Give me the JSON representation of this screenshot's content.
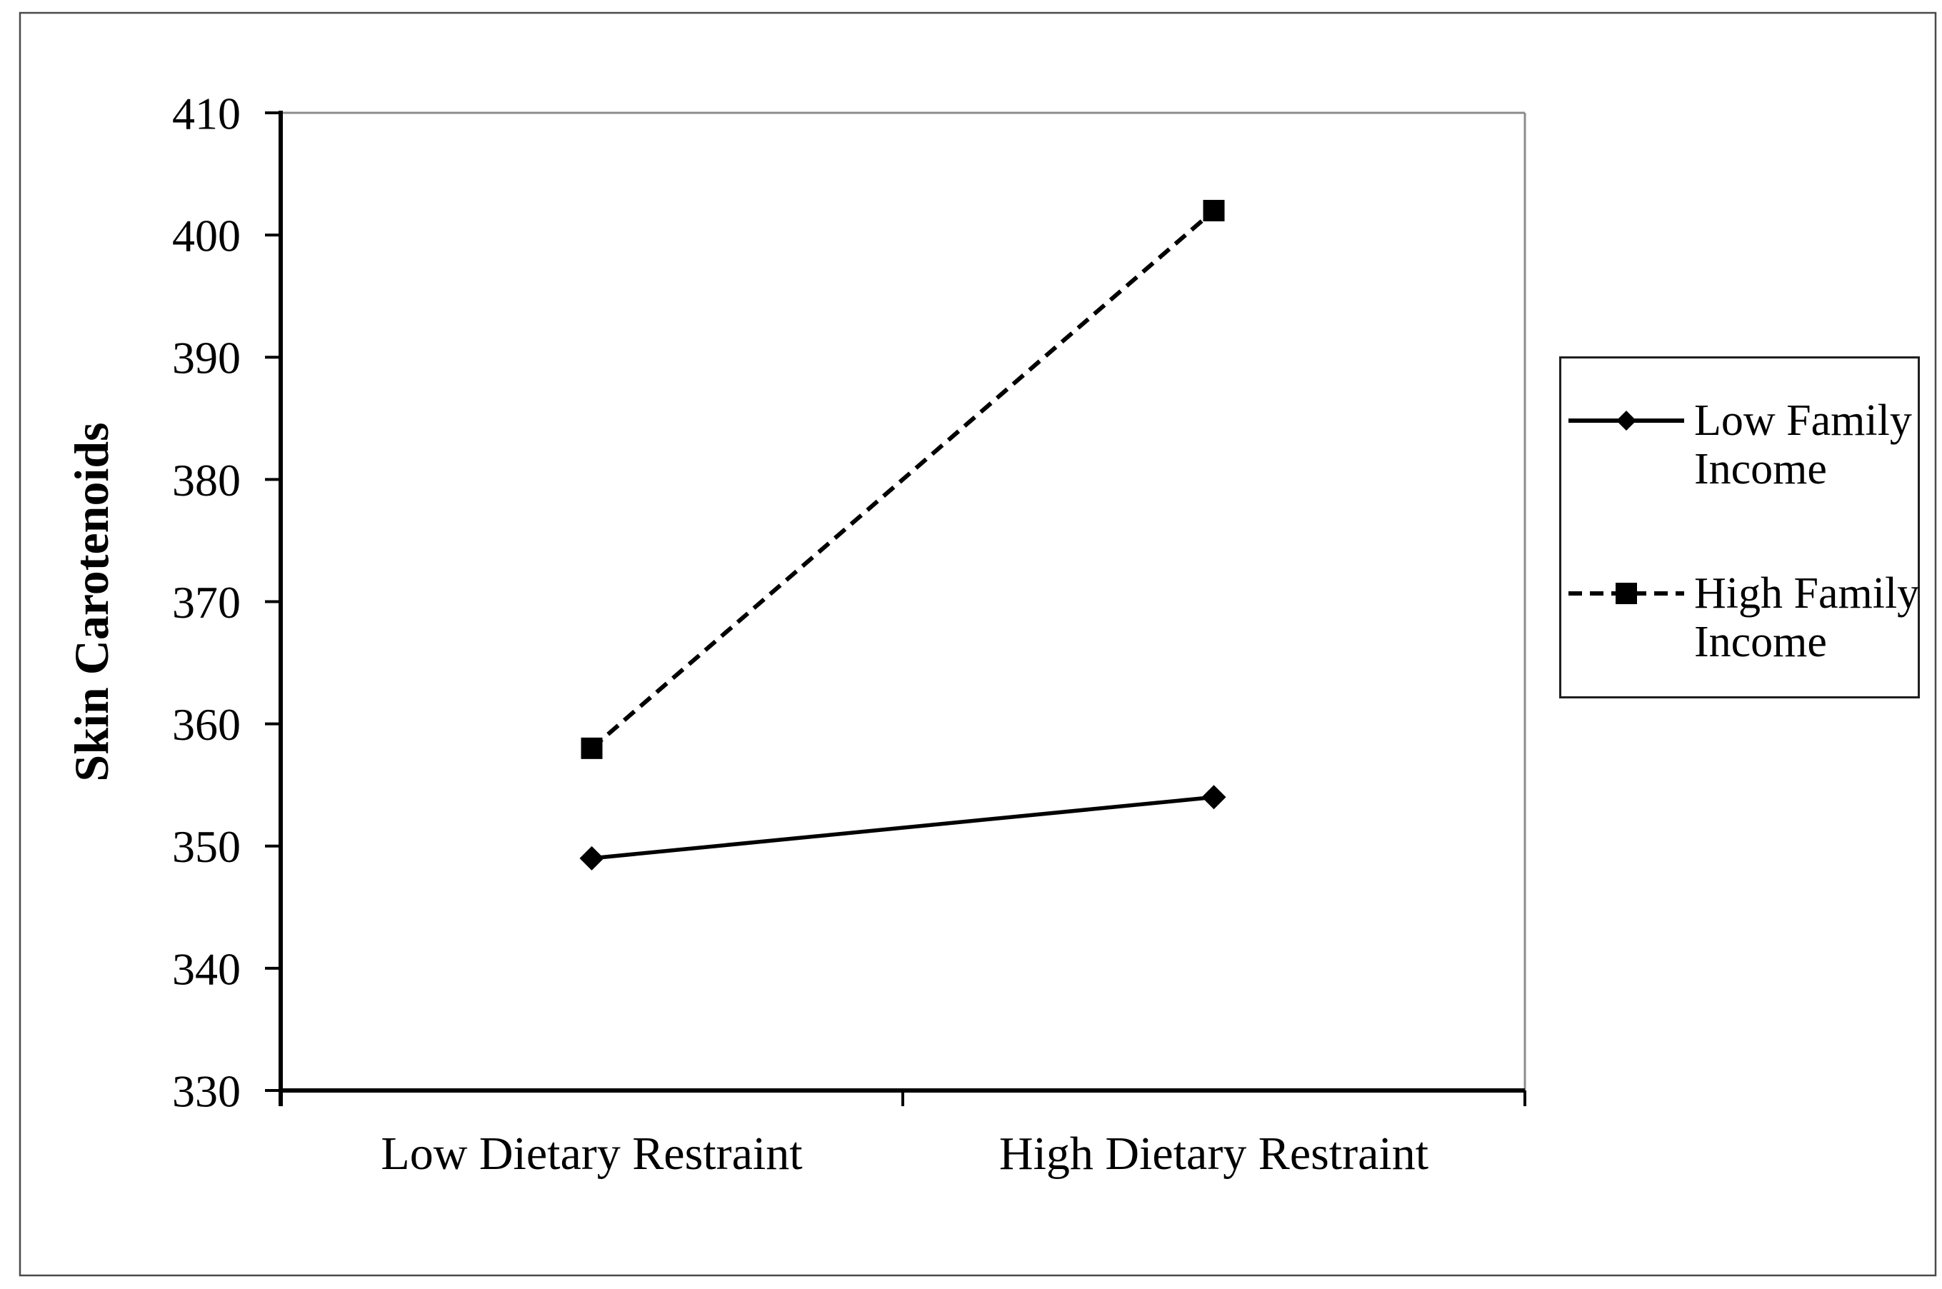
{
  "figure": {
    "background": "#ffffff",
    "outer_border_color": "#4a4a4a",
    "plot_frame_color": "#8c8c8c",
    "axis_color": "#000000",
    "series_color": "#000000"
  },
  "chart_data": {
    "type": "line",
    "title": "",
    "categories": [
      "Low Dietary Restraint",
      "High Dietary Restraint"
    ],
    "series": [
      {
        "name": "Low Family Income",
        "values": [
          349,
          354
        ],
        "line_style": "solid",
        "marker": "diamond",
        "color": "#000000"
      },
      {
        "name": "High Family Income",
        "values": [
          358,
          402
        ],
        "line_style": "dashed",
        "marker": "square",
        "color": "#000000"
      }
    ],
    "xlabel": "",
    "ylabel": "Skin Carotenoids",
    "ylim": [
      330,
      410
    ],
    "ytick_step": 10,
    "yticks": [
      410,
      400,
      390,
      380,
      370,
      360,
      350,
      340,
      330
    ],
    "grid": false,
    "legend_position": "right"
  },
  "legend": {
    "items": [
      {
        "label": "Low Family Income",
        "line1": "Low Family",
        "line2": "Income",
        "marker": "diamond",
        "line_style": "solid"
      },
      {
        "label": "High Family Income",
        "line1": "High Family",
        "line2": "Income",
        "marker": "square",
        "line_style": "dashed"
      }
    ]
  }
}
